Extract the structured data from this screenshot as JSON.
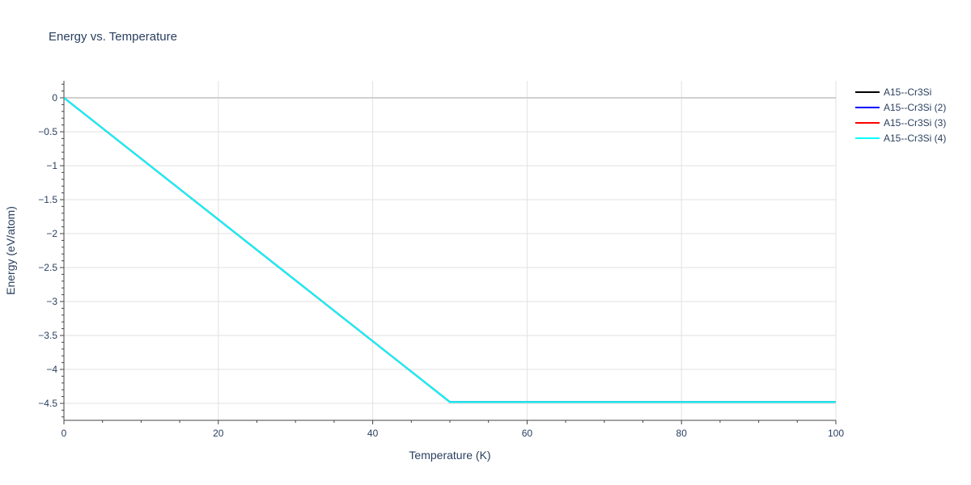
{
  "chart_data": {
    "type": "line",
    "title": "Energy vs. Temperature",
    "xlabel": "Temperature (K)",
    "ylabel": "Energy (eV/atom)",
    "xlim": [
      0,
      100
    ],
    "ylim": [
      -4.75,
      0.25
    ],
    "xticks": [
      0,
      20,
      40,
      60,
      80,
      100
    ],
    "xtick_labels": [
      "0",
      "20",
      "40",
      "60",
      "80",
      "100"
    ],
    "yticks": [
      0,
      -0.5,
      -1,
      -1.5,
      -2,
      -2.5,
      -3,
      -3.5,
      -4,
      -4.5
    ],
    "ytick_labels": [
      "0",
      "−0.5",
      "−1",
      "−1.5",
      "−2",
      "−2.5",
      "−3",
      "−3.5",
      "−4",
      "−4.5"
    ],
    "grid": true,
    "legend_position": "top-right-outside",
    "series": [
      {
        "name": "A15--Cr3Si",
        "color": "#000000",
        "x": [
          0,
          50,
          100
        ],
        "y": [
          0,
          -4.48,
          -4.48
        ]
      },
      {
        "name": "A15--Cr3Si (2)",
        "color": "#0000ff",
        "x": [
          0,
          50,
          100
        ],
        "y": [
          0,
          -4.48,
          -4.48
        ]
      },
      {
        "name": "A15--Cr3Si (3)",
        "color": "#ff0000",
        "x": [
          0,
          50,
          100
        ],
        "y": [
          0,
          -4.48,
          -4.48
        ]
      },
      {
        "name": "A15--Cr3Si (4)",
        "color": "#00ffff",
        "x": [
          0,
          50,
          100
        ],
        "y": [
          0,
          -4.48,
          -4.48
        ]
      }
    ]
  }
}
